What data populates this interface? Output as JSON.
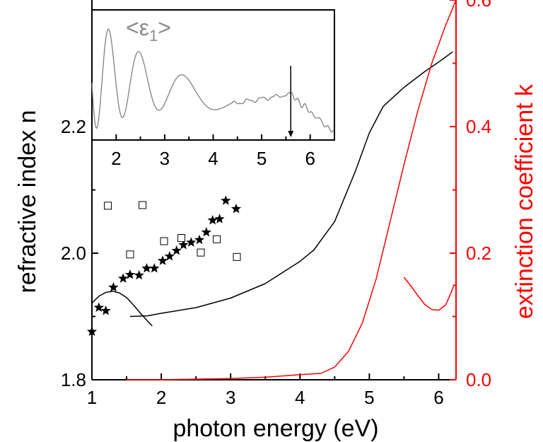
{
  "chart_data": [
    {
      "type": "line",
      "role": "main",
      "x_axis": {
        "label": "photon energy  (eV)",
        "range": [
          1.0,
          6.25
        ],
        "ticks": [
          1,
          2,
          3,
          4,
          5,
          6
        ],
        "tick_labels": [
          "1",
          "2",
          "3",
          "4",
          "5",
          "6"
        ]
      },
      "y_left_axis": {
        "label": "refractive index n",
        "range": [
          1.8,
          2.4
        ],
        "ticks": [
          1.8,
          2.0,
          2.2
        ],
        "tick_labels": [
          "1.8",
          "2.0",
          "2.2"
        ],
        "color": "#000000"
      },
      "y_right_axis": {
        "label": "extinction coefficient k",
        "range": [
          0.0,
          0.6
        ],
        "ticks": [
          0.0,
          0.2,
          0.4,
          0.6
        ],
        "tick_labels": [
          "0.0",
          "0.2",
          "0.4",
          "0.6"
        ],
        "color": "#ff0000"
      },
      "series": [
        {
          "style": "line",
          "axis": "left",
          "color": "#000000",
          "points": [
            [
              1.55,
              1.9
            ],
            [
              1.8,
              1.901
            ],
            [
              2.0,
              1.905
            ],
            [
              2.5,
              1.914
            ],
            [
              3.0,
              1.929
            ],
            [
              3.5,
              1.952
            ],
            [
              4.0,
              1.987
            ],
            [
              4.2,
              2.005
            ],
            [
              4.5,
              2.05
            ],
            [
              4.8,
              2.13
            ],
            [
              5.0,
              2.19
            ],
            [
              5.2,
              2.232
            ],
            [
              5.5,
              2.262
            ],
            [
              5.8,
              2.287
            ],
            [
              6.0,
              2.302
            ],
            [
              6.2,
              2.318
            ]
          ]
        },
        {
          "style": "line",
          "axis": "left",
          "color": "#000000",
          "points": [
            [
              1.0,
              1.921
            ],
            [
              1.1,
              1.932
            ],
            [
              1.2,
              1.938
            ],
            [
              1.3,
              1.94
            ],
            [
              1.4,
              1.937
            ],
            [
              1.5,
              1.93
            ],
            [
              1.6,
              1.918
            ],
            [
              1.7,
              1.905
            ],
            [
              1.8,
              1.893
            ],
            [
              1.87,
              1.885
            ]
          ]
        },
        {
          "style": "star",
          "axis": "left",
          "color": "#000000",
          "points": [
            [
              1.0,
              1.876
            ],
            [
              1.1,
              1.914
            ],
            [
              1.2,
              1.909
            ],
            [
              1.31,
              1.946
            ],
            [
              1.45,
              1.96
            ],
            [
              1.55,
              1.966
            ],
            [
              1.68,
              1.965
            ],
            [
              1.79,
              1.976
            ],
            [
              1.9,
              1.976
            ],
            [
              2.02,
              1.988
            ],
            [
              2.12,
              1.995
            ],
            [
              2.22,
              2.004
            ],
            [
              2.32,
              2.013
            ],
            [
              2.43,
              2.017
            ],
            [
              2.55,
              2.021
            ],
            [
              2.65,
              2.033
            ],
            [
              2.74,
              2.052
            ],
            [
              2.84,
              2.054
            ],
            [
              2.93,
              2.083
            ],
            [
              3.08,
              2.07
            ]
          ]
        },
        {
          "style": "square",
          "axis": "left",
          "color": "#000000",
          "points": [
            [
              1.23,
              2.075
            ],
            [
              1.55,
              1.998
            ],
            [
              1.73,
              2.076
            ],
            [
              2.04,
              2.019
            ],
            [
              2.29,
              2.024
            ],
            [
              2.57,
              2.001
            ],
            [
              2.8,
              2.022
            ],
            [
              3.09,
              1.994
            ]
          ]
        },
        {
          "style": "line",
          "axis": "right",
          "color": "#ff0000",
          "points": [
            [
              1.5,
              0.0
            ],
            [
              2.0,
              0.0
            ],
            [
              2.5,
              0.001
            ],
            [
              3.0,
              0.002
            ],
            [
              3.5,
              0.004
            ],
            [
              4.0,
              0.008
            ],
            [
              4.3,
              0.01
            ],
            [
              4.5,
              0.02
            ],
            [
              4.7,
              0.045
            ],
            [
              4.9,
              0.09
            ],
            [
              5.1,
              0.16
            ],
            [
              5.3,
              0.25
            ],
            [
              5.5,
              0.34
            ],
            [
              5.7,
              0.425
            ],
            [
              5.9,
              0.5
            ],
            [
              6.1,
              0.56
            ],
            [
              6.25,
              0.6
            ]
          ]
        },
        {
          "style": "line",
          "axis": "right",
          "color": "#ff0000",
          "points": [
            [
              5.5,
              0.162
            ],
            [
              5.6,
              0.148
            ],
            [
              5.7,
              0.133
            ],
            [
              5.8,
              0.119
            ],
            [
              5.9,
              0.111
            ],
            [
              6.0,
              0.11
            ],
            [
              6.1,
              0.118
            ],
            [
              6.18,
              0.138
            ],
            [
              6.22,
              0.15
            ],
            [
              6.25,
              0.148
            ]
          ]
        }
      ]
    },
    {
      "type": "line",
      "role": "inset",
      "x_axis": {
        "range": [
          1.5,
          6.5
        ],
        "ticks": [
          2,
          3,
          4,
          5,
          6
        ],
        "tick_labels": [
          "2",
          "3",
          "4",
          "5",
          "6"
        ]
      },
      "annotation": {
        "text": "<ε",
        "subscript": "1",
        "close": ">",
        "color": "#8a8a8a"
      },
      "arrow_x": 5.6,
      "series": [
        {
          "color": "#808080",
          "segments": [
            {
              "x_from": 1.5,
              "x_to": 4.4,
              "offset": 0.52,
              "slope": -0.08,
              "amp0": 0.45,
              "decay": 0.3,
              "period0": 0.43,
              "period_growth": 0.035,
              "phase": 1.75
            },
            {
              "x_from": 4.4,
              "x_to": 5.6,
              "offset": 0.28,
              "slope": 0.06,
              "amp0": 0.01,
              "decay": 0.0,
              "period0": 0.3,
              "period_growth": 0.0,
              "phase": 0.0
            },
            {
              "x_from": 5.6,
              "x_to": 6.5,
              "offset": 0.35,
              "slope": -0.33,
              "amp0": 0.015,
              "decay": 0.0,
              "period0": 0.15,
              "period_growth": 0.0,
              "phase": 0.0
            }
          ]
        }
      ]
    }
  ]
}
